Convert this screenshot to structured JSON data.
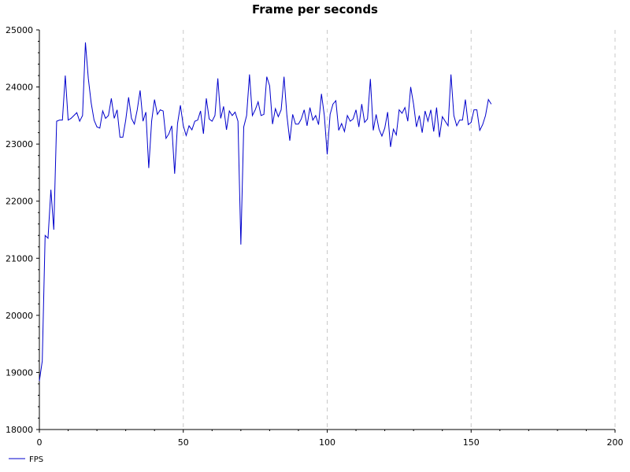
{
  "chart_data": {
    "type": "line",
    "title": "Frame per seconds",
    "xlabel": "",
    "ylabel": "",
    "xlim": [
      0,
      200
    ],
    "ylim": [
      18000,
      25000
    ],
    "xticks": [
      0,
      50,
      100,
      150,
      200
    ],
    "yticks": [
      18000,
      19000,
      20000,
      21000,
      22000,
      23000,
      24000,
      25000
    ],
    "grid": "vertical-dashed",
    "legend_position": "bottom-left",
    "line_color": "#0000cc",
    "series": [
      {
        "name": "FPS",
        "x": [
          0,
          1,
          2,
          3,
          4,
          5,
          6,
          7,
          8,
          9,
          10,
          11,
          12,
          13,
          14,
          15,
          16,
          17,
          18,
          19,
          20,
          21,
          22,
          23,
          24,
          25,
          26,
          27,
          28,
          29,
          30,
          31,
          32,
          33,
          34,
          35,
          36,
          37,
          38,
          39,
          40,
          41,
          42,
          43,
          44,
          45,
          46,
          47,
          48,
          49,
          50,
          51,
          52,
          53,
          54,
          55,
          56,
          57,
          58,
          59,
          60,
          61,
          62,
          63,
          64,
          65,
          66,
          67,
          68,
          69,
          70,
          71,
          72,
          73,
          74,
          75,
          76,
          77,
          78,
          79,
          80,
          81,
          82,
          83,
          84,
          85,
          86,
          87,
          88,
          89,
          90,
          91,
          92,
          93,
          94,
          95,
          96,
          97,
          98,
          99,
          100,
          101,
          102,
          103,
          104,
          105,
          106,
          107,
          108,
          109,
          110,
          111,
          112,
          113,
          114,
          115,
          116,
          117,
          118,
          119,
          120,
          121,
          122,
          123,
          124,
          125,
          126,
          127,
          128,
          129,
          130,
          131,
          132,
          133,
          134,
          135,
          136,
          137,
          138,
          139,
          140,
          141,
          142,
          143,
          144,
          145,
          146,
          147,
          148,
          149,
          150,
          151,
          152,
          153,
          154,
          155,
          156,
          157
        ],
        "y": [
          18850,
          19200,
          21400,
          21350,
          22200,
          21500,
          23400,
          23420,
          23420,
          24200,
          23420,
          23450,
          23500,
          23550,
          23400,
          23500,
          24780,
          24150,
          23720,
          23420,
          23300,
          23280,
          23580,
          23450,
          23500,
          23800,
          23450,
          23600,
          23120,
          23120,
          23420,
          23820,
          23450,
          23350,
          23600,
          23940,
          23400,
          23560,
          22580,
          23400,
          23780,
          23520,
          23600,
          23580,
          23100,
          23180,
          23320,
          22480,
          23360,
          23680,
          23320,
          23150,
          23320,
          23250,
          23400,
          23420,
          23580,
          23180,
          23800,
          23440,
          23400,
          23500,
          24150,
          23450,
          23660,
          23250,
          23580,
          23500,
          23560,
          23400,
          21240,
          23300,
          23500,
          24220,
          23500,
          23600,
          23740,
          23500,
          23520,
          24180,
          24020,
          23350,
          23620,
          23480,
          23600,
          24180,
          23500,
          23060,
          23520,
          23350,
          23350,
          23440,
          23600,
          23320,
          23640,
          23420,
          23500,
          23340,
          23880,
          23500,
          22820,
          23520,
          23700,
          23760,
          23240,
          23360,
          23220,
          23500,
          23400,
          23440,
          23600,
          23300,
          23700,
          23380,
          23440,
          24140,
          23240,
          23520,
          23260,
          23140,
          23280,
          23560,
          22950,
          23260,
          23160,
          23600,
          23540,
          23640,
          23400,
          24000,
          23700,
          23300,
          23500,
          23200,
          23580,
          23400,
          23600,
          23220,
          23640,
          23120,
          23480,
          23400,
          23320,
          24220,
          23500,
          23320,
          23420,
          23420,
          23780,
          23340,
          23380,
          23600,
          23600,
          23240,
          23340,
          23500,
          23780,
          23700
        ]
      }
    ]
  }
}
